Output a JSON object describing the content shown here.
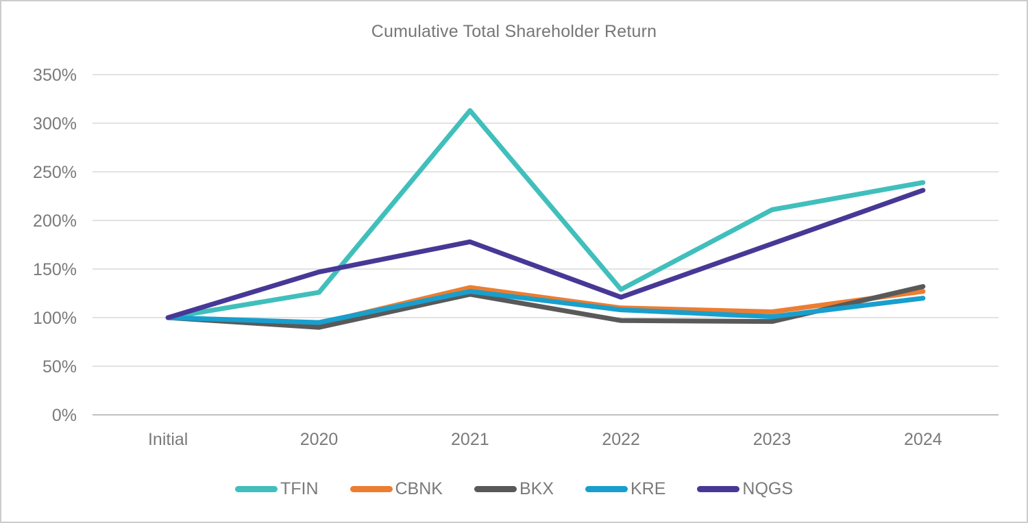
{
  "chart_data": {
    "type": "line",
    "title": "Cumulative Total Shareholder Return",
    "categories": [
      "Initial",
      "2020",
      "2021",
      "2022",
      "2023",
      "2024"
    ],
    "series": [
      {
        "name": "TFIN",
        "color": "#40bfbc",
        "values": [
          100,
          126,
          313,
          129,
          211,
          239
        ]
      },
      {
        "name": "CBNK",
        "color": "#ed7d31",
        "values": [
          100,
          94,
          131,
          110,
          106,
          127
        ]
      },
      {
        "name": "BKX",
        "color": "#595959",
        "values": [
          100,
          90,
          124,
          97,
          96,
          132
        ]
      },
      {
        "name": "KRE",
        "color": "#189fcd",
        "values": [
          100,
          95,
          127,
          108,
          101,
          120
        ]
      },
      {
        "name": "NQGS",
        "color": "#473896",
        "values": [
          100,
          147,
          178,
          121,
          176,
          231
        ]
      }
    ],
    "y_axis": {
      "min": 0,
      "max": 350,
      "step": 50,
      "format": "percent"
    },
    "y_tick_labels": [
      "0%",
      "50%",
      "100%",
      "150%",
      "200%",
      "250%",
      "300%",
      "350%"
    ],
    "x_axis_label": "",
    "y_axis_label": "",
    "grid": true,
    "legend_position": "bottom",
    "gridline_color": "#d9d9d9",
    "axis_line_color": "#bfbfbf",
    "tick_label_color": "#7a7a7a",
    "line_width": 7
  }
}
